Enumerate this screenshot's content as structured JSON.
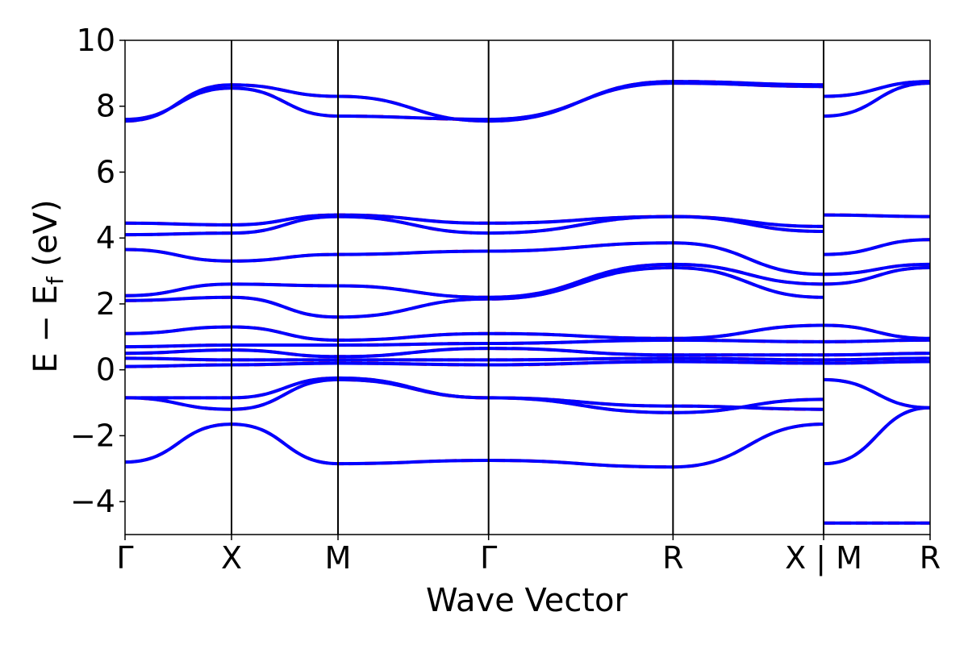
{
  "colors": {
    "dft": "#ff0000",
    "model": "#0000ff",
    "frame": "#000000",
    "background": "#ffffff"
  },
  "chart_data": {
    "type": "line",
    "title": "",
    "xlabel": "Wave Vector",
    "ylabel_main": "E − E",
    "ylabel_sub": "f",
    "ylabel_unit": " (eV)",
    "ylim": [
      -5,
      10
    ],
    "yticks": [
      -4,
      -2,
      0,
      2,
      4,
      6,
      8,
      10
    ],
    "ytick_labels": [
      "−4",
      "−2",
      "0",
      "2",
      "4",
      "6",
      "8",
      "10"
    ],
    "grid": false,
    "legend": "none",
    "high_symmetry_points": [
      {
        "label": "Γ",
        "k": 0.0
      },
      {
        "label": "X",
        "k": 0.5
      },
      {
        "label": "M",
        "k": 1.0
      },
      {
        "label": "Γ",
        "k": 1.707
      },
      {
        "label": "R",
        "k": 2.573
      },
      {
        "label": "X | M",
        "k": 3.28
      },
      {
        "label": "R",
        "k": 3.78
      }
    ],
    "series_styles": [
      {
        "key": "red",
        "style": "dashed",
        "color": "#ff0000"
      },
      {
        "key": "blue",
        "style": "solid",
        "color": "#0000ff"
      }
    ],
    "bands": [
      {
        "k": [
          0,
          0.5,
          1.0,
          1.707,
          2.573,
          3.28
        ],
        "e": [
          -2.8,
          -1.65,
          -2.85,
          -2.75,
          -2.95,
          -1.65
        ]
      },
      {
        "k": [
          3.28,
          3.78
        ],
        "e": [
          -2.85,
          -1.15
        ]
      },
      {
        "k": [
          0,
          0.5,
          1.0,
          1.707,
          2.573,
          3.28
        ],
        "e": [
          -0.85,
          -1.2,
          -0.3,
          -0.85,
          -1.1,
          -1.2
        ]
      },
      {
        "k": [
          0,
          0.5,
          1.0,
          1.707,
          2.573,
          3.28
        ],
        "e": [
          -0.85,
          -0.85,
          -0.25,
          -0.85,
          -1.3,
          -0.9
        ]
      },
      {
        "k": [
          3.28,
          3.78
        ],
        "e": [
          -0.3,
          -1.15
        ]
      },
      {
        "k": [
          0,
          0.5,
          1.0,
          1.707,
          2.573,
          3.28,
          3.78
        ],
        "e": [
          0.1,
          0.15,
          0.2,
          0.15,
          0.25,
          0.2,
          0.25
        ]
      },
      {
        "k": [
          0,
          0.5,
          1.0,
          1.707,
          2.573,
          3.28,
          3.78
        ],
        "e": [
          0.35,
          0.3,
          0.3,
          0.3,
          0.35,
          0.3,
          0.35
        ]
      },
      {
        "k": [
          0,
          0.5,
          1.0,
          1.707,
          2.573,
          3.28,
          3.78
        ],
        "e": [
          0.5,
          0.6,
          0.4,
          0.65,
          0.45,
          0.45,
          0.5
        ]
      },
      {
        "k": [
          0,
          0.5,
          1.0,
          1.707,
          2.573,
          3.28,
          3.78
        ],
        "e": [
          0.7,
          0.75,
          0.75,
          0.8,
          0.9,
          0.85,
          0.9
        ]
      },
      {
        "k": [
          0,
          0.5,
          1.0,
          1.707,
          2.573,
          3.28,
          3.78
        ],
        "e": [
          1.1,
          1.3,
          0.9,
          1.1,
          0.95,
          1.35,
          0.95
        ]
      },
      {
        "k": [
          0,
          0.5,
          1.0,
          1.707,
          2.573,
          3.28
        ],
        "e": [
          2.1,
          2.2,
          1.6,
          2.15,
          3.1,
          2.2
        ]
      },
      {
        "k": [
          3.28,
          3.78
        ],
        "e": [
          2.6,
          3.1
        ]
      },
      {
        "k": [
          0,
          0.5,
          1.0,
          1.707,
          2.573,
          3.28
        ],
        "e": [
          2.25,
          2.6,
          2.55,
          2.2,
          3.2,
          2.6
        ]
      },
      {
        "k": [
          3.28,
          3.78
        ],
        "e": [
          2.9,
          3.2
        ]
      },
      {
        "k": [
          0,
          0.5,
          1.0,
          1.707,
          2.573,
          3.28
        ],
        "e": [
          3.65,
          3.3,
          3.5,
          3.6,
          3.85,
          2.9
        ]
      },
      {
        "k": [
          3.28,
          3.78
        ],
        "e": [
          3.5,
          3.95
        ]
      },
      {
        "k": [
          0,
          0.5,
          1.0,
          1.707,
          2.573,
          3.28
        ],
        "e": [
          4.45,
          4.4,
          4.7,
          4.45,
          4.65,
          4.35
        ]
      },
      {
        "k": [
          3.28,
          3.78
        ],
        "e": [
          4.7,
          4.65
        ]
      },
      {
        "k": [
          0,
          0.5,
          1.0,
          1.707,
          2.573,
          3.28
        ],
        "e": [
          4.1,
          4.15,
          4.65,
          4.15,
          4.65,
          4.2
        ]
      },
      {
        "k": [
          0,
          0.5,
          1.0,
          1.707,
          2.573,
          3.28
        ],
        "e": [
          7.6,
          8.55,
          7.7,
          7.6,
          8.7,
          8.6
        ]
      },
      {
        "k": [
          3.28,
          3.78
        ],
        "e": [
          7.7,
          8.7
        ]
      },
      {
        "k": [
          0,
          0.5,
          1.0,
          1.707,
          2.573,
          3.28
        ],
        "e": [
          7.55,
          8.65,
          8.3,
          7.55,
          8.75,
          8.65
        ]
      },
      {
        "k": [
          3.28,
          3.78
        ],
        "e": [
          8.3,
          8.75
        ]
      },
      {
        "k": [
          3.28,
          3.78
        ],
        "e": [
          -4.65,
          -4.65
        ]
      }
    ]
  }
}
